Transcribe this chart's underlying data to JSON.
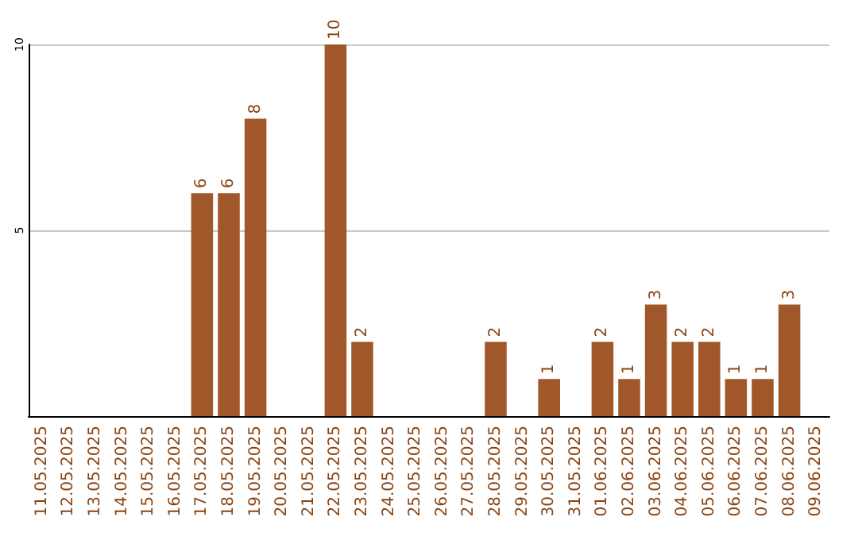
{
  "chart_data": {
    "type": "bar",
    "categories": [
      "11.05.2025",
      "12.05.2025",
      "13.05.2025",
      "14.05.2025",
      "15.05.2025",
      "16.05.2025",
      "17.05.2025",
      "18.05.2025",
      "19.05.2025",
      "20.05.2025",
      "21.05.2025",
      "22.05.2025",
      "23.05.2025",
      "24.05.2025",
      "25.05.2025",
      "26.05.2025",
      "27.05.2025",
      "28.05.2025",
      "29.05.2025",
      "30.05.2025",
      "31.05.2025",
      "01.06.2025",
      "02.06.2025",
      "03.06.2025",
      "04.06.2025",
      "05.06.2025",
      "06.06.2025",
      "07.06.2025",
      "08.06.2025",
      "09.06.2025"
    ],
    "values": [
      0,
      0,
      0,
      0,
      0,
      0,
      6,
      6,
      8,
      0,
      0,
      10,
      2,
      0,
      0,
      0,
      0,
      2,
      0,
      1,
      0,
      2,
      1,
      3,
      2,
      2,
      1,
      1,
      3,
      0
    ],
    "value_labels": [
      null,
      null,
      null,
      null,
      null,
      null,
      "6",
      "6",
      "8",
      null,
      null,
      "10",
      "2",
      null,
      null,
      null,
      null,
      "2",
      null,
      "1",
      null,
      "2",
      "1",
      "3",
      "2",
      "2",
      "1",
      "1",
      "3",
      null
    ],
    "color": "#a0582b",
    "ylim": [
      0,
      10
    ],
    "yticks": [
      5,
      10
    ],
    "grid": "y"
  }
}
